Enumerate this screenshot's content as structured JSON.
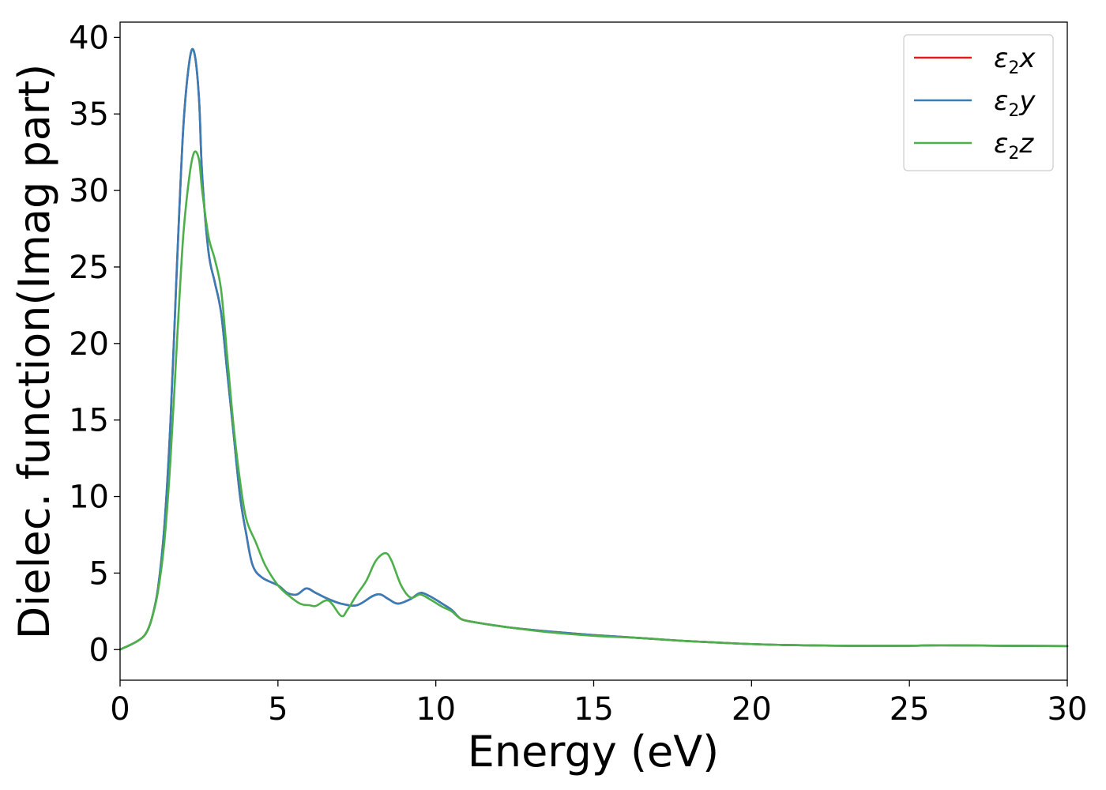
{
  "chart_data": {
    "type": "line",
    "xlabel": "Energy (eV)",
    "ylabel": "Dielec. function(Imag part)",
    "xlim": [
      0,
      30
    ],
    "ylim": [
      -2,
      41
    ],
    "xticks": [
      0,
      5,
      10,
      15,
      20,
      25,
      30
    ],
    "yticks": [
      0,
      5,
      10,
      15,
      20,
      25,
      30,
      35,
      40
    ],
    "grid": false,
    "legend_position": "top-right",
    "series": [
      {
        "name": "ε2x",
        "label_base": "ε",
        "label_sub": "2",
        "label_tail": "x",
        "color": "#e41a1c",
        "x": [
          0,
          0.5,
          0.8,
          1.0,
          1.2,
          1.4,
          1.6,
          1.8,
          2.0,
          2.2,
          2.35,
          2.5,
          2.6,
          2.8,
          3.0,
          3.2,
          3.4,
          3.6,
          3.8,
          4.0,
          4.2,
          4.5,
          5.0,
          5.3,
          5.6,
          5.9,
          6.2,
          6.6,
          7.0,
          7.5,
          8.0,
          8.25,
          8.5,
          8.8,
          9.2,
          9.5,
          9.8,
          10.2,
          10.5,
          10.8,
          11.2,
          11.8,
          12.5,
          13.5,
          15.0,
          16.5,
          18.0,
          19.5,
          21.0,
          23.0,
          25.0,
          26.0,
          28.0,
          30.0
        ],
        "y": [
          0,
          0.5,
          1.0,
          2.0,
          4.0,
          8.0,
          15.0,
          25.0,
          34.0,
          38.5,
          39.0,
          36.0,
          31.0,
          26.0,
          24.0,
          22.0,
          18.0,
          14.0,
          10.0,
          7.5,
          5.5,
          4.7,
          4.2,
          3.7,
          3.6,
          4.0,
          3.7,
          3.3,
          3.0,
          2.9,
          3.5,
          3.6,
          3.3,
          3.0,
          3.3,
          3.7,
          3.5,
          3.0,
          2.6,
          2.0,
          1.8,
          1.6,
          1.4,
          1.2,
          0.95,
          0.75,
          0.55,
          0.4,
          0.3,
          0.25,
          0.25,
          0.28,
          0.25,
          0.23
        ]
      },
      {
        "name": "ε2y",
        "label_base": "ε",
        "label_sub": "2",
        "label_tail": "y",
        "color": "#377eb8",
        "x": [
          0,
          0.5,
          0.8,
          1.0,
          1.2,
          1.4,
          1.6,
          1.8,
          2.0,
          2.2,
          2.35,
          2.5,
          2.6,
          2.8,
          3.0,
          3.2,
          3.4,
          3.6,
          3.8,
          4.0,
          4.2,
          4.5,
          5.0,
          5.3,
          5.6,
          5.9,
          6.2,
          6.6,
          7.0,
          7.5,
          8.0,
          8.25,
          8.5,
          8.8,
          9.2,
          9.5,
          9.8,
          10.2,
          10.5,
          10.8,
          11.2,
          11.8,
          12.5,
          13.5,
          15.0,
          16.5,
          18.0,
          19.5,
          21.0,
          23.0,
          25.0,
          26.0,
          28.0,
          30.0
        ],
        "y": [
          0,
          0.5,
          1.0,
          2.0,
          4.0,
          8.0,
          15.0,
          25.0,
          34.0,
          38.5,
          39.0,
          36.0,
          31.0,
          26.0,
          24.0,
          22.0,
          18.0,
          14.0,
          10.0,
          7.5,
          5.5,
          4.7,
          4.2,
          3.7,
          3.6,
          4.0,
          3.7,
          3.3,
          3.0,
          2.9,
          3.5,
          3.6,
          3.3,
          3.0,
          3.3,
          3.7,
          3.5,
          3.0,
          2.6,
          2.0,
          1.8,
          1.6,
          1.4,
          1.2,
          0.95,
          0.75,
          0.55,
          0.4,
          0.3,
          0.25,
          0.25,
          0.28,
          0.25,
          0.23
        ]
      },
      {
        "name": "ε2z",
        "label_base": "ε",
        "label_sub": "2",
        "label_tail": "z",
        "color": "#4daf4a",
        "x": [
          0,
          0.5,
          0.8,
          1.0,
          1.2,
          1.4,
          1.6,
          1.8,
          2.0,
          2.2,
          2.35,
          2.5,
          2.6,
          2.8,
          3.0,
          3.2,
          3.4,
          3.6,
          3.8,
          4.0,
          4.3,
          4.6,
          5.0,
          5.3,
          5.7,
          6.0,
          6.2,
          6.6,
          7.0,
          7.2,
          7.5,
          7.8,
          8.1,
          8.4,
          8.6,
          8.9,
          9.2,
          9.5,
          9.8,
          10.2,
          10.5,
          10.8,
          11.2,
          11.8,
          12.5,
          13.5,
          15.0,
          16.5,
          18.0,
          19.5,
          21.0,
          23.0,
          25.0,
          26.0,
          28.0,
          30.0
        ],
        "y": [
          0,
          0.5,
          1.0,
          2.0,
          3.8,
          7.0,
          12.5,
          20.0,
          27.0,
          31.0,
          32.5,
          32.0,
          30.0,
          27.0,
          25.5,
          23.5,
          19.0,
          14.5,
          11.0,
          8.5,
          7.0,
          5.5,
          4.2,
          3.6,
          3.0,
          2.9,
          2.85,
          3.2,
          2.2,
          2.6,
          3.6,
          4.5,
          5.8,
          6.3,
          5.8,
          4.2,
          3.4,
          3.6,
          3.3,
          2.8,
          2.5,
          2.0,
          1.8,
          1.6,
          1.4,
          1.15,
          0.9,
          0.75,
          0.55,
          0.4,
          0.3,
          0.25,
          0.25,
          0.28,
          0.25,
          0.23
        ]
      }
    ]
  }
}
